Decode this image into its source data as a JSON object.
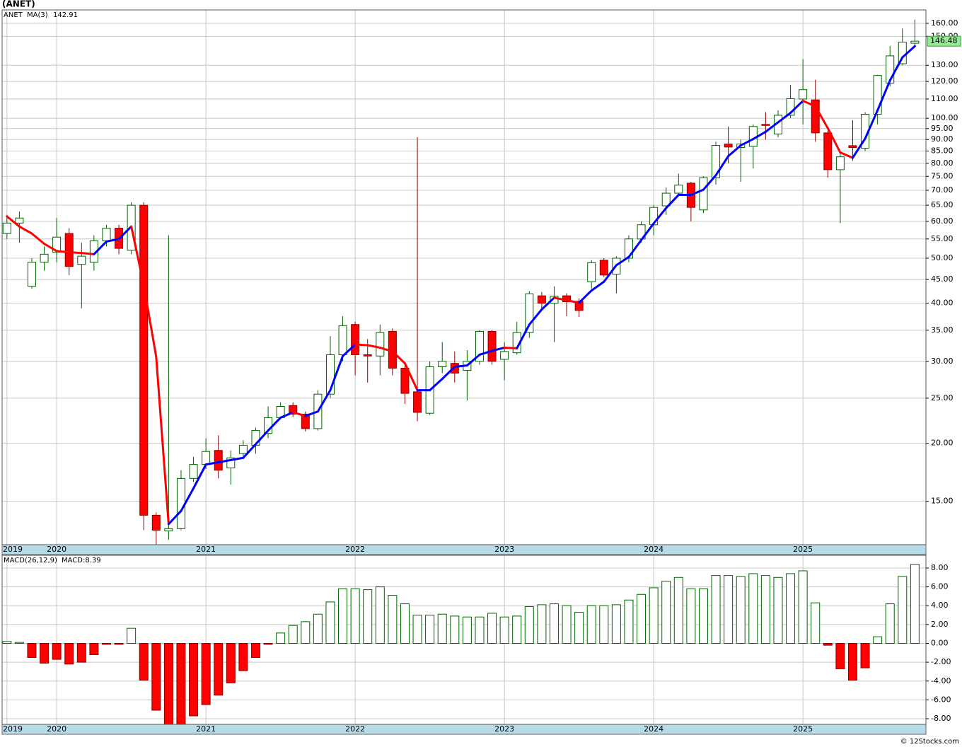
{
  "chart_data": [
    {
      "type": "candlestick",
      "title": "(ANET)",
      "categories": [
        "2019",
        null,
        null,
        null,
        "2020",
        null,
        null,
        null,
        null,
        null,
        null,
        null,
        null,
        null,
        null,
        null,
        "2021",
        null,
        null,
        null,
        null,
        null,
        null,
        null,
        null,
        null,
        null,
        null,
        "2022",
        null,
        null,
        null,
        null,
        null,
        null,
        null,
        null,
        null,
        null,
        null,
        "2023",
        null,
        null,
        null,
        null,
        null,
        null,
        null,
        null,
        null,
        null,
        null,
        "2024",
        null,
        null,
        null,
        null,
        null,
        null,
        null,
        null,
        null,
        null,
        null,
        "2025",
        null,
        null,
        null,
        null,
        null,
        null,
        null,
        null,
        null
      ],
      "series": [
        {
          "name": "ANET",
          "color": "#006400",
          "down_color": "#ff0000",
          "open": [
            56.5,
            59.5,
            43.5,
            49,
            51.5,
            56.5,
            48.5,
            49,
            54.5,
            58,
            52,
            65,
            14,
            12.95,
            13.1,
            16.8,
            18,
            19.3,
            17.7,
            19,
            19.8,
            21,
            22.7,
            24.1,
            23.1,
            21.5,
            25.5,
            31,
            36,
            31,
            30.8,
            34.8,
            29,
            25.8,
            23.2,
            29.2,
            29.7,
            28.7,
            30,
            34.8,
            30.3,
            31.3,
            34.6,
            41.5,
            40,
            41.5,
            40.4,
            44.5,
            49.5,
            46.2,
            50,
            55,
            59,
            64.8,
            69,
            72.5,
            63.5,
            74.5,
            88,
            86.5,
            87,
            97,
            92.5,
            101.5,
            110,
            109.5,
            93,
            77.5,
            87.3,
            86.2,
            102,
            119,
            131,
            145
          ],
          "high": [
            62,
            63,
            50,
            53,
            61,
            58,
            54,
            56,
            59,
            59,
            66,
            66,
            14.2,
            56,
            17.5,
            18.7,
            20.5,
            20.8,
            19.3,
            20.3,
            21.6,
            24,
            24.5,
            24.5,
            23.4,
            26,
            34,
            37.5,
            36.5,
            33.5,
            36,
            35.3,
            29.8,
            91,
            30,
            33,
            31.5,
            31.7,
            35,
            35,
            33,
            36.5,
            42.5,
            42.3,
            43.5,
            42,
            41,
            49.5,
            50,
            50.5,
            56,
            60,
            65,
            71,
            76,
            73,
            75,
            89,
            96,
            90,
            97,
            103,
            104,
            118,
            134,
            121,
            94,
            85,
            99,
            103,
            124,
            143,
            156,
            163
          ],
          "low": [
            55,
            54,
            43,
            47,
            49,
            46,
            39,
            47,
            53,
            51,
            51,
            13,
            12.1,
            12.4,
            13,
            16.5,
            17.6,
            16.8,
            16.3,
            18.6,
            19,
            20.5,
            22.5,
            22.8,
            21.2,
            21.3,
            25,
            30,
            28,
            27,
            28,
            28,
            24.3,
            22.3,
            23,
            28.3,
            27,
            24.7,
            29.5,
            29.5,
            27.3,
            31,
            33.7,
            39,
            33,
            37.5,
            37.4,
            43,
            45.5,
            42,
            49,
            54,
            56,
            62,
            68,
            60,
            62.5,
            72,
            80,
            73,
            78,
            90,
            91,
            100,
            97,
            89,
            74.5,
            59.5,
            81,
            85,
            97,
            117,
            130,
            142
          ],
          "close": [
            59.5,
            61,
            49,
            51,
            55.5,
            48,
            50.5,
            54.5,
            58,
            52.5,
            65,
            14,
            13,
            13.1,
            16.8,
            18,
            19.2,
            17.5,
            18.6,
            19.8,
            21.3,
            22.7,
            24,
            23.1,
            21.5,
            25.5,
            31,
            35.8,
            31,
            30.8,
            34.6,
            29,
            25.6,
            23.3,
            29.2,
            30,
            28.3,
            30,
            34.8,
            30,
            31.5,
            34.6,
            41.9,
            40,
            41.4,
            40.3,
            38.6,
            48.9,
            46,
            50,
            55,
            59,
            64.3,
            69,
            71.8,
            64.3,
            74.5,
            87.4,
            86.7,
            88,
            96,
            96.5,
            101.5,
            110.2,
            115.2,
            93,
            77.5,
            82.6,
            86.5,
            102,
            123.6,
            136.2,
            145.8,
            146.48
          ]
        },
        {
          "name": "MA(3)",
          "color": "#0000ff",
          "down_color": "#ff0000",
          "values": [
            61.5,
            58.5,
            56.5,
            53.7,
            51.8,
            51.5,
            51.3,
            51,
            54.3,
            55,
            58.5,
            43.8,
            30.7,
            13.4,
            14.3,
            16,
            18,
            18.2,
            18.4,
            18.6,
            19.9,
            21.3,
            22.7,
            23.3,
            22.9,
            23.4,
            26,
            30.8,
            32.6,
            32.5,
            32.1,
            31.5,
            29.7,
            26,
            26,
            27.5,
            29.2,
            29.4,
            31,
            31.6,
            32.1,
            32,
            36,
            38.8,
            41.1,
            40.6,
            40.1,
            42.6,
            44.5,
            48.3,
            50.3,
            54.7,
            59.4,
            64.1,
            68.4,
            68.4,
            70.2,
            75.4,
            82.9,
            87.4,
            90.2,
            93.5,
            98,
            102.7,
            109,
            106.1,
            95.2,
            84.4,
            82.2,
            90.4,
            104,
            120.6,
            135.2,
            142.91
          ]
        }
      ],
      "log_scale": true,
      "grid": true,
      "ylim": [
        12.1,
        171
      ],
      "yticks": [
        {
          "value": 15,
          "label": "15.00"
        },
        {
          "value": 20,
          "label": "20.00"
        },
        {
          "value": 25,
          "label": "25.00"
        },
        {
          "value": 30,
          "label": "30.00"
        },
        {
          "value": 35,
          "label": "35.00"
        },
        {
          "value": 40,
          "label": "40.00"
        },
        {
          "value": 45,
          "label": "45.00"
        },
        {
          "value": 50,
          "label": "50.00"
        },
        {
          "value": 55,
          "label": "55.00"
        },
        {
          "value": 60,
          "label": "60.00"
        },
        {
          "value": 65,
          "label": "65.00"
        },
        {
          "value": 70,
          "label": "70.00"
        },
        {
          "value": 75,
          "label": "75.00"
        },
        {
          "value": 80,
          "label": "80.00"
        },
        {
          "value": 85,
          "label": "85.00"
        },
        {
          "value": 90,
          "label": "90.00"
        },
        {
          "value": 95,
          "label": "95.00"
        },
        {
          "value": 100,
          "label": "100.00"
        },
        {
          "value": 110,
          "label": "110.00"
        },
        {
          "value": 120,
          "label": "120.00"
        },
        {
          "value": 130,
          "label": "130.00"
        },
        {
          "value": 150,
          "label": "150.00"
        },
        {
          "value": 160,
          "label": "160.00"
        }
      ]
    },
    {
      "type": "bar",
      "title": "MACD(26,12,9)",
      "categories": [
        "2019",
        null,
        null,
        null,
        "2020",
        null,
        null,
        null,
        null,
        null,
        null,
        null,
        null,
        null,
        null,
        null,
        "2021",
        null,
        null,
        null,
        null,
        null,
        null,
        null,
        null,
        null,
        null,
        null,
        "2022",
        null,
        null,
        null,
        null,
        null,
        null,
        null,
        null,
        null,
        null,
        null,
        "2023",
        null,
        null,
        null,
        null,
        null,
        null,
        null,
        null,
        null,
        null,
        null,
        "2024",
        null,
        null,
        null,
        null,
        null,
        null,
        null,
        null,
        null,
        null,
        null,
        "2025",
        null,
        null,
        null,
        null,
        null,
        null,
        null,
        null,
        null
      ],
      "series": [
        {
          "name": "MACD:",
          "color": "#006400",
          "down_color": "#ff0000",
          "values": [
            0.2,
            0.1,
            -1.5,
            -2.1,
            -1.7,
            -2.2,
            -2,
            -1.2,
            -0.1,
            -0.1,
            1.6,
            -3.9,
            -7.1,
            -8.6,
            -8.6,
            -7.7,
            -6.5,
            -5.5,
            -4.2,
            -2.9,
            -1.5,
            -0.1,
            1.1,
            1.9,
            2.3,
            3.1,
            4.4,
            5.8,
            5.8,
            5.7,
            6,
            5.1,
            4.2,
            3,
            3,
            3.1,
            2.9,
            2.8,
            2.8,
            3.2,
            2.8,
            2.9,
            3.9,
            4.1,
            4.2,
            4,
            3.3,
            4,
            4,
            4.1,
            4.6,
            5.2,
            5.9,
            6.6,
            7,
            5.8,
            5.8,
            7.2,
            7.2,
            7.1,
            7.4,
            7.2,
            7,
            7.4,
            7.7,
            4.3,
            -0.2,
            -2.7,
            -3.9,
            -2.6,
            0.7,
            4.2,
            7.1,
            8.39
          ]
        }
      ],
      "grid": true,
      "ylim": [
        -8.6,
        9.35
      ],
      "yticks": [
        {
          "value": -8,
          "label": "-8.00"
        },
        {
          "value": -6,
          "label": "-6.00"
        },
        {
          "value": -4,
          "label": "-4.00"
        },
        {
          "value": -2,
          "label": "-2.00"
        },
        {
          "value": 0,
          "label": "0.00"
        },
        {
          "value": 2,
          "label": "2.00"
        },
        {
          "value": 4,
          "label": "4.00"
        },
        {
          "value": 6,
          "label": "6.00"
        },
        {
          "value": 8,
          "label": "8.00"
        }
      ]
    }
  ],
  "credit": "© 12Stocks.com"
}
